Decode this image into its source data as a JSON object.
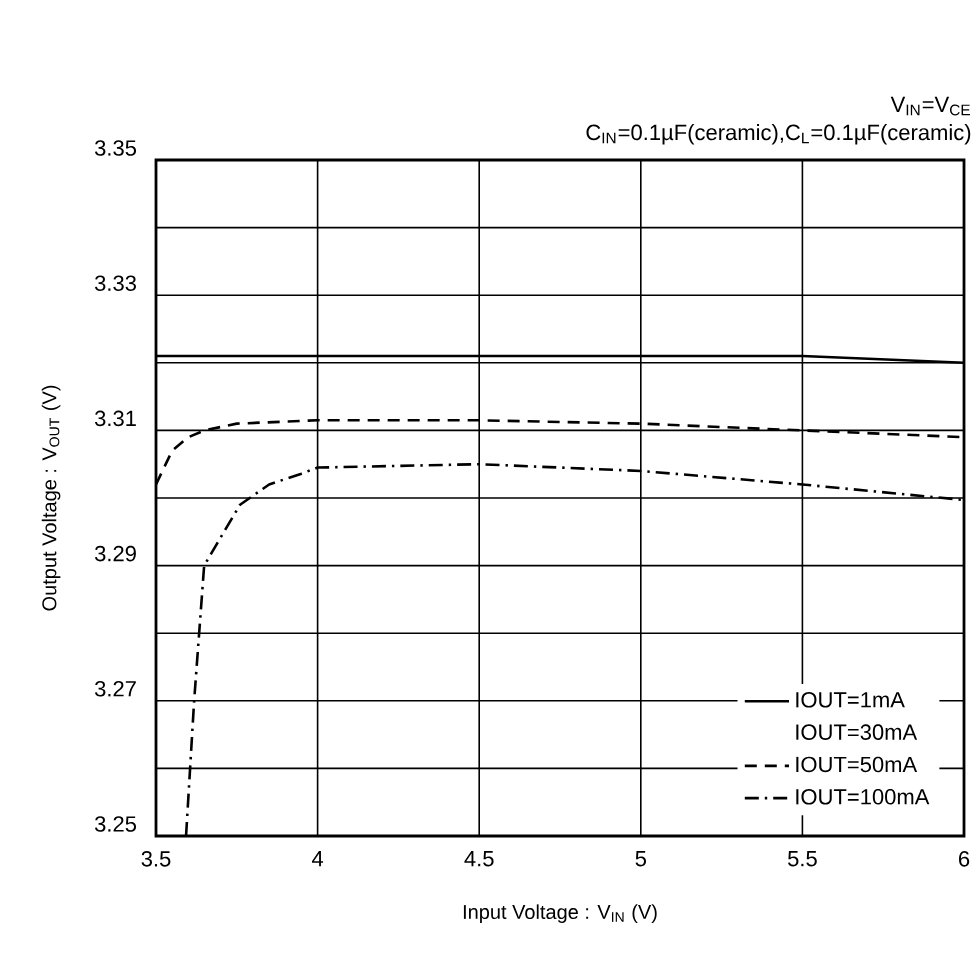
{
  "chart_data": {
    "type": "line",
    "xlabel": "Input Voltage : V$_{IN}$ (V)",
    "ylabel": "Output Voltage : V$_{OUT}$ (V)",
    "annotations": [
      "V$_{IN}$=V$_{CE}$",
      "C$_{IN}$=0.1µF(ceramic),C$_{L}$=0.1µF(ceramic)"
    ],
    "xlim": [
      3.5,
      6
    ],
    "xticks": [
      3.5,
      4,
      4.5,
      5,
      5.5,
      6
    ],
    "ylim": [
      3.25,
      3.35
    ],
    "yticks": [
      3.25,
      {
        "value": 3.26,
        "label": null
      },
      3.27,
      {
        "value": 3.28,
        "label": null
      },
      3.29,
      {
        "value": 3.3,
        "label": null
      },
      3.31,
      {
        "value": 3.32,
        "label": null
      },
      3.33,
      {
        "value": 3.34,
        "label": null
      },
      3.35
    ],
    "grid": true,
    "legend": "bottom right",
    "marker": "none",
    "series": [
      {
        "name": "IOUT=1mA",
        "color": "#000000",
        "line_style": "solid",
        "x": [
          3.5,
          4,
          4.5,
          5,
          5.5,
          6
        ],
        "values": [
          3.321,
          3.321,
          3.321,
          3.321,
          3.321,
          3.32
        ]
      },
      {
        "name": "IOUT=30mA"
      },
      {
        "name": "IOUT=50mA",
        "color": "#000000",
        "line_style": "dashed",
        "x": [
          3.5,
          3.55,
          3.6,
          3.65,
          3.75,
          4,
          4.5,
          5,
          5.5,
          6
        ],
        "values": [
          3.302,
          3.307,
          3.309,
          3.31,
          3.311,
          3.3115,
          3.3115,
          3.311,
          3.31,
          3.309
        ]
      },
      {
        "name": "IOUT=100mA",
        "color": "#000000",
        "line_style": "dashdotted",
        "x": [
          3.593,
          3.618,
          3.649,
          3.698,
          3.76,
          3.85,
          3.95,
          4,
          4.5,
          5,
          5.5,
          6
        ],
        "values": [
          3.25,
          3.27,
          3.29,
          3.294,
          3.299,
          3.302,
          3.3036,
          3.3045,
          3.305,
          3.304,
          3.302,
          3.2997
        ]
      }
    ]
  }
}
